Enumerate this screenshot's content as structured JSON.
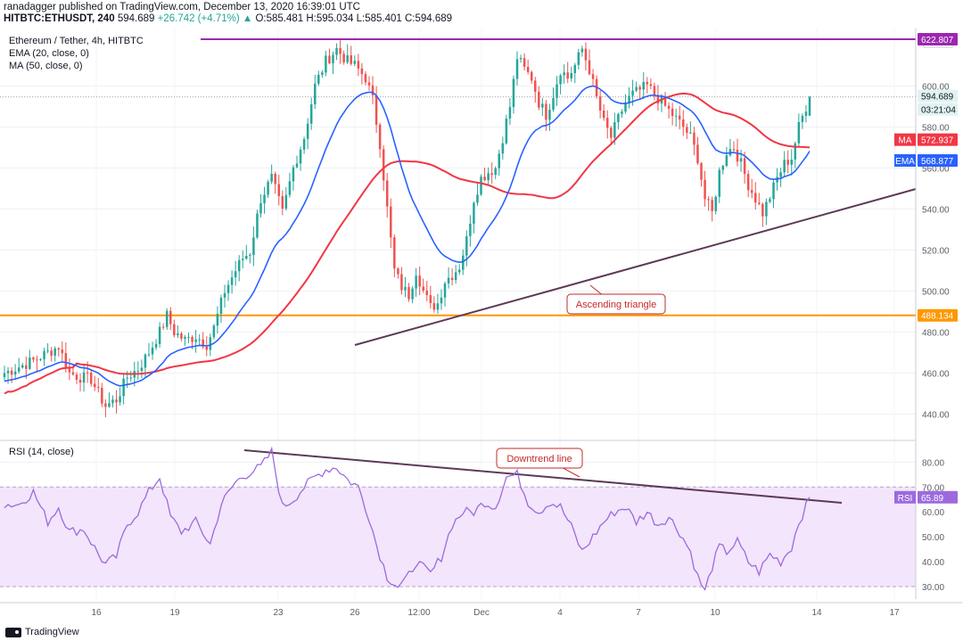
{
  "header": {
    "line1": "ranadagger published on TradingView.com, December 13, 2020 16:39:01 UTC",
    "symbol": "HITBTC:ETHUSDT, 240",
    "last": "594.689",
    "change": "+26.742 (+4.71%)",
    "ohlc": "O:585.481 H:595.034 L:585.401 C:594.689"
  },
  "price_pane": {
    "title": "Ethereum / Tether, 4h, HITBTC",
    "indicator1": "EMA (20, close, 0)",
    "indicator2": "MA (50, close, 0)",
    "currency": "USDT",
    "price_labels": {
      "resistance": "622.807",
      "last": "594.689",
      "countdown": "03:21:04",
      "ma_label": "MA",
      "ma_value": "572.937",
      "ema_label": "EMA",
      "ema_value": "568.877",
      "support": "488.134"
    },
    "annotation": "Ascending triangle"
  },
  "rsi_pane": {
    "title": "RSI (14, close)",
    "rsi_label": "RSI",
    "rsi_value": "65.89",
    "annotation": "Downtrend line"
  },
  "footer": {
    "brand": "TradingView"
  },
  "colors": {
    "up": "#26a69a",
    "down": "#ef5350",
    "ema": "#2962ff",
    "ma": "#f23645",
    "resistance": "#9c27b0",
    "support": "#ff9800",
    "trendline": "#5d3a57",
    "rsi": "#9c6ade",
    "rsi_band": "#f3e5fb"
  },
  "chart_data": {
    "type": "candlestick",
    "timeframe": "4h",
    "x_ticks": [
      "16",
      "19",
      "23",
      "26",
      "12:00",
      "Dec",
      "4",
      "7",
      "10",
      "14",
      "17"
    ],
    "y_ticks": [
      440,
      460,
      480,
      500,
      520,
      540,
      560,
      580,
      600
    ],
    "y_range": [
      428,
      628
    ],
    "rsi_ticks": [
      30,
      40,
      50,
      60,
      70,
      80
    ],
    "rsi_range": [
      25,
      88
    ],
    "resistance_level": 622.807,
    "support_level": 488.134,
    "anchors": [
      [
        0,
        460
      ],
      [
        4,
        463
      ],
      [
        8,
        466
      ],
      [
        12,
        470
      ],
      [
        15,
        473
      ],
      [
        18,
        460
      ],
      [
        21,
        458
      ],
      [
        24,
        457
      ],
      [
        26,
        450
      ],
      [
        28,
        444
      ],
      [
        31,
        447
      ],
      [
        34,
        458
      ],
      [
        37,
        462
      ],
      [
        40,
        470
      ],
      [
        43,
        480
      ],
      [
        45,
        488
      ],
      [
        47,
        480
      ],
      [
        50,
        476
      ],
      [
        53,
        478
      ],
      [
        56,
        474
      ],
      [
        58,
        482
      ],
      [
        61,
        500
      ],
      [
        64,
        510
      ],
      [
        66,
        516
      ],
      [
        68,
        519
      ],
      [
        71,
        545
      ],
      [
        74,
        555
      ],
      [
        77,
        538
      ],
      [
        80,
        560
      ],
      [
        83,
        575
      ],
      [
        86,
        600
      ],
      [
        89,
        612
      ],
      [
        92,
        618
      ],
      [
        95,
        612
      ],
      [
        97,
        610
      ],
      [
        100,
        604
      ],
      [
        102,
        593
      ],
      [
        104,
        572
      ],
      [
        106,
        540
      ],
      [
        108,
        510
      ],
      [
        110,
        502
      ],
      [
        112,
        498
      ],
      [
        114,
        510
      ],
      [
        116,
        500
      ],
      [
        118,
        492
      ],
      [
        120,
        494
      ],
      [
        122,
        505
      ],
      [
        124,
        508
      ],
      [
        126,
        512
      ],
      [
        128,
        525
      ],
      [
        130,
        545
      ],
      [
        132,
        555
      ],
      [
        134,
        558
      ],
      [
        136,
        560
      ],
      [
        138,
        575
      ],
      [
        140,
        590
      ],
      [
        142,
        614
      ],
      [
        144,
        608
      ],
      [
        146,
        604
      ],
      [
        148,
        592
      ],
      [
        150,
        586
      ],
      [
        152,
        596
      ],
      [
        154,
        608
      ],
      [
        156,
        604
      ],
      [
        158,
        610
      ],
      [
        160,
        618
      ],
      [
        162,
        608
      ],
      [
        164,
        594
      ],
      [
        166,
        582
      ],
      [
        168,
        575
      ],
      [
        170,
        584
      ],
      [
        172,
        592
      ],
      [
        174,
        596
      ],
      [
        176,
        598
      ],
      [
        178,
        600
      ],
      [
        180,
        596
      ],
      [
        182,
        592
      ],
      [
        184,
        588
      ],
      [
        186,
        584
      ],
      [
        188,
        580
      ],
      [
        190,
        575
      ],
      [
        192,
        565
      ],
      [
        194,
        545
      ],
      [
        196,
        538
      ],
      [
        198,
        558
      ],
      [
        200,
        568
      ],
      [
        202,
        570
      ],
      [
        204,
        562
      ],
      [
        206,
        552
      ],
      [
        208,
        545
      ],
      [
        210,
        538
      ],
      [
        212,
        546
      ],
      [
        214,
        555
      ],
      [
        216,
        562
      ],
      [
        218,
        565
      ],
      [
        220,
        580
      ],
      [
        222,
        590
      ],
      [
        223,
        594.7
      ]
    ],
    "rsi_anchors": [
      [
        0,
        63
      ],
      [
        4,
        63
      ],
      [
        8,
        68
      ],
      [
        12,
        56
      ],
      [
        15,
        62
      ],
      [
        18,
        52
      ],
      [
        22,
        53
      ],
      [
        26,
        43
      ],
      [
        28,
        39
      ],
      [
        31,
        42
      ],
      [
        34,
        55
      ],
      [
        37,
        60
      ],
      [
        40,
        68
      ],
      [
        43,
        74
      ],
      [
        46,
        58
      ],
      [
        49,
        52
      ],
      [
        53,
        56
      ],
      [
        57,
        47
      ],
      [
        60,
        63
      ],
      [
        64,
        72
      ],
      [
        68,
        76
      ],
      [
        71,
        78
      ],
      [
        74,
        84
      ],
      [
        77,
        62
      ],
      [
        80,
        65
      ],
      [
        83,
        70
      ],
      [
        86,
        74
      ],
      [
        89,
        77
      ],
      [
        92,
        78
      ],
      [
        95,
        73
      ],
      [
        98,
        70
      ],
      [
        101,
        58
      ],
      [
        103,
        47
      ],
      [
        106,
        34
      ],
      [
        109,
        30
      ],
      [
        111,
        32
      ],
      [
        114,
        40
      ],
      [
        118,
        35
      ],
      [
        121,
        42
      ],
      [
        124,
        55
      ],
      [
        127,
        60
      ],
      [
        130,
        60
      ],
      [
        133,
        64
      ],
      [
        136,
        62
      ],
      [
        139,
        74
      ],
      [
        142,
        75
      ],
      [
        145,
        64
      ],
      [
        148,
        60
      ],
      [
        151,
        64
      ],
      [
        154,
        62
      ],
      [
        157,
        54
      ],
      [
        160,
        44
      ],
      [
        163,
        50
      ],
      [
        166,
        56
      ],
      [
        169,
        60
      ],
      [
        172,
        62
      ],
      [
        175,
        56
      ],
      [
        178,
        60
      ],
      [
        181,
        55
      ],
      [
        184,
        58
      ],
      [
        187,
        52
      ],
      [
        190,
        44
      ],
      [
        192,
        34
      ],
      [
        194,
        28
      ],
      [
        196,
        38
      ],
      [
        198,
        46
      ],
      [
        200,
        44
      ],
      [
        203,
        48
      ],
      [
        206,
        40
      ],
      [
        209,
        36
      ],
      [
        212,
        43
      ],
      [
        215,
        40
      ],
      [
        218,
        46
      ],
      [
        220,
        56
      ],
      [
        222,
        62
      ],
      [
        223,
        65.89
      ]
    ]
  }
}
